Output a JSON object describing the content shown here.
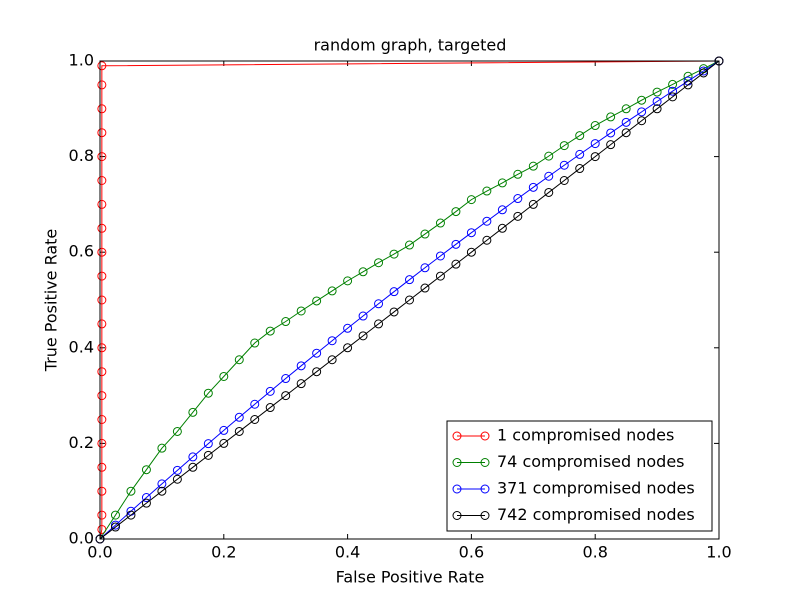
{
  "chart_data": {
    "type": "line",
    "title": "random graph, targeted",
    "x_label": "False Positive Rate",
    "y_label": "True Positive Rate",
    "xlim": [
      0,
      1
    ],
    "ylim": [
      0,
      1
    ],
    "xticks": [
      {
        "value": 0,
        "label": "0.0"
      },
      0.2,
      0.4,
      0.6,
      0.8,
      {
        "value": 1,
        "label": "1.0"
      }
    ],
    "yticks": [
      {
        "value": 0,
        "label": "0.0"
      },
      0.2,
      0.4,
      0.6,
      0.8,
      {
        "value": 1,
        "label": "1.0"
      }
    ],
    "legend": "lower right",
    "series": [
      {
        "name": "1 compromised nodes",
        "color": "#ff0000",
        "x": [
          0,
          0.003,
          0.003,
          0.003,
          0.003,
          0.003,
          0.003,
          0.003,
          0.003,
          0.003,
          0.003,
          0.003,
          0.003,
          0.003,
          0.003,
          0.003,
          0.003,
          0.003,
          0.003,
          0.003,
          0.003,
          0.003,
          1
        ],
        "values": [
          0,
          0.02,
          0.05,
          0.1,
          0.15,
          0.2,
          0.25,
          0.3,
          0.35,
          0.4,
          0.45,
          0.5,
          0.55,
          0.6,
          0.65,
          0.7,
          0.75,
          0.8,
          0.85,
          0.9,
          0.95,
          0.99,
          1
        ]
      },
      {
        "name": "74 compromised nodes",
        "color": "#008000",
        "x": [
          0,
          0.025,
          0.05,
          0.075,
          0.1,
          0.125,
          0.15,
          0.175,
          0.2,
          0.225,
          0.25,
          0.275,
          0.3,
          0.325,
          0.35,
          0.375,
          0.4,
          0.425,
          0.45,
          0.475,
          0.5,
          0.525,
          0.55,
          0.575,
          0.6,
          0.625,
          0.65,
          0.675,
          0.7,
          0.725,
          0.75,
          0.775,
          0.8,
          0.825,
          0.85,
          0.875,
          0.9,
          0.925,
          0.95,
          0.975,
          1
        ],
        "values": [
          0,
          0.05,
          0.1,
          0.145,
          0.19,
          0.225,
          0.265,
          0.305,
          0.34,
          0.375,
          0.41,
          0.435,
          0.455,
          0.477,
          0.498,
          0.519,
          0.54,
          0.559,
          0.578,
          0.596,
          0.615,
          0.638,
          0.661,
          0.685,
          0.71,
          0.728,
          0.745,
          0.763,
          0.78,
          0.801,
          0.823,
          0.844,
          0.865,
          0.883,
          0.9,
          0.918,
          0.935,
          0.951,
          0.968,
          0.984,
          1
        ]
      },
      {
        "name": "371 compromised nodes",
        "color": "#0000ff",
        "x": [
          0,
          0.025,
          0.05,
          0.075,
          0.1,
          0.125,
          0.15,
          0.175,
          0.2,
          0.225,
          0.25,
          0.275,
          0.3,
          0.325,
          0.35,
          0.375,
          0.4,
          0.425,
          0.45,
          0.475,
          0.5,
          0.525,
          0.55,
          0.575,
          0.6,
          0.625,
          0.65,
          0.675,
          0.7,
          0.725,
          0.75,
          0.775,
          0.8,
          0.825,
          0.85,
          0.875,
          0.9,
          0.925,
          0.95,
          0.975,
          1
        ],
        "values": [
          0,
          0.0291,
          0.0581,
          0.0868,
          0.1153,
          0.1436,
          0.1717,
          0.1995,
          0.2272,
          0.2546,
          0.2819,
          0.3089,
          0.3357,
          0.3623,
          0.3887,
          0.4148,
          0.4408,
          0.4665,
          0.4921,
          0.5174,
          0.5425,
          0.5674,
          0.5921,
          0.6165,
          0.6408,
          0.6648,
          0.6887,
          0.7123,
          0.7357,
          0.7589,
          0.7819,
          0.8046,
          0.8272,
          0.8495,
          0.8717,
          0.8936,
          0.9153,
          0.9368,
          0.9581,
          0.9791,
          1
        ]
      },
      {
        "name": "742 compromised nodes",
        "color": "#000000",
        "x": [
          0,
          0.025,
          0.05,
          0.075,
          0.1,
          0.125,
          0.15,
          0.175,
          0.2,
          0.225,
          0.25,
          0.275,
          0.3,
          0.325,
          0.35,
          0.375,
          0.4,
          0.425,
          0.45,
          0.475,
          0.5,
          0.525,
          0.55,
          0.575,
          0.6,
          0.625,
          0.65,
          0.675,
          0.7,
          0.725,
          0.75,
          0.775,
          0.8,
          0.825,
          0.85,
          0.875,
          0.9,
          0.925,
          0.95,
          0.975,
          1
        ],
        "values": [
          0,
          0.025,
          0.05,
          0.075,
          0.1,
          0.125,
          0.15,
          0.175,
          0.2,
          0.225,
          0.25,
          0.275,
          0.3,
          0.325,
          0.35,
          0.375,
          0.4,
          0.425,
          0.45,
          0.475,
          0.5,
          0.525,
          0.55,
          0.575,
          0.6,
          0.625,
          0.65,
          0.675,
          0.7,
          0.725,
          0.75,
          0.775,
          0.8,
          0.825,
          0.85,
          0.875,
          0.9,
          0.925,
          0.95,
          0.975,
          1
        ]
      }
    ]
  }
}
